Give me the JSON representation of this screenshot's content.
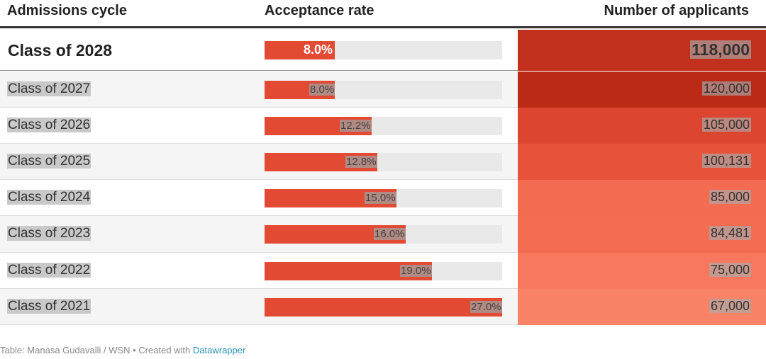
{
  "chart_data": {
    "type": "table",
    "columns": [
      "Admissions cycle",
      "Acceptance rate",
      "Number of applicants"
    ],
    "rows": [
      {
        "cycle": "Class of 2028",
        "rate": 8.0,
        "rate_label": "8.0%",
        "applicants": 118000,
        "applicants_label": "118,000",
        "color": "#c1301c"
      },
      {
        "cycle": "Class of 2027",
        "rate": 8.0,
        "rate_label": "8.0%",
        "applicants": 120000,
        "applicants_label": "120,000",
        "color": "#bb2a16"
      },
      {
        "cycle": "Class of 2026",
        "rate": 12.2,
        "rate_label": "12.2%",
        "applicants": 105000,
        "applicants_label": "105,000",
        "color": "#dc4630"
      },
      {
        "cycle": "Class of 2025",
        "rate": 12.8,
        "rate_label": "12.8%",
        "applicants": 100131,
        "applicants_label": "100,131",
        "color": "#e4533a"
      },
      {
        "cycle": "Class of 2024",
        "rate": 15.0,
        "rate_label": "15.0%",
        "applicants": 85000,
        "applicants_label": "85,000",
        "color": "#f36c52"
      },
      {
        "cycle": "Class of 2023",
        "rate": 16.0,
        "rate_label": "16.0%",
        "applicants": 84481,
        "applicants_label": "84,481",
        "color": "#f46d53"
      },
      {
        "cycle": "Class of 2022",
        "rate": 19.0,
        "rate_label": "19.0%",
        "applicants": 75000,
        "applicants_label": "75,000",
        "color": "#f7785f"
      },
      {
        "cycle": "Class of 2021",
        "rate": 27.0,
        "rate_label": "27.0%",
        "applicants": 67000,
        "applicants_label": "67,000",
        "color": "#f98366"
      }
    ],
    "rate_max": 27.0,
    "highlighted_row": "Class of 2028",
    "bar_color": "#e34a33",
    "track_color": "#e9e9e9"
  },
  "footer": {
    "prefix": "Table: Manasa Gudavalli / WSN • Created with ",
    "link": "Datawrapper"
  }
}
